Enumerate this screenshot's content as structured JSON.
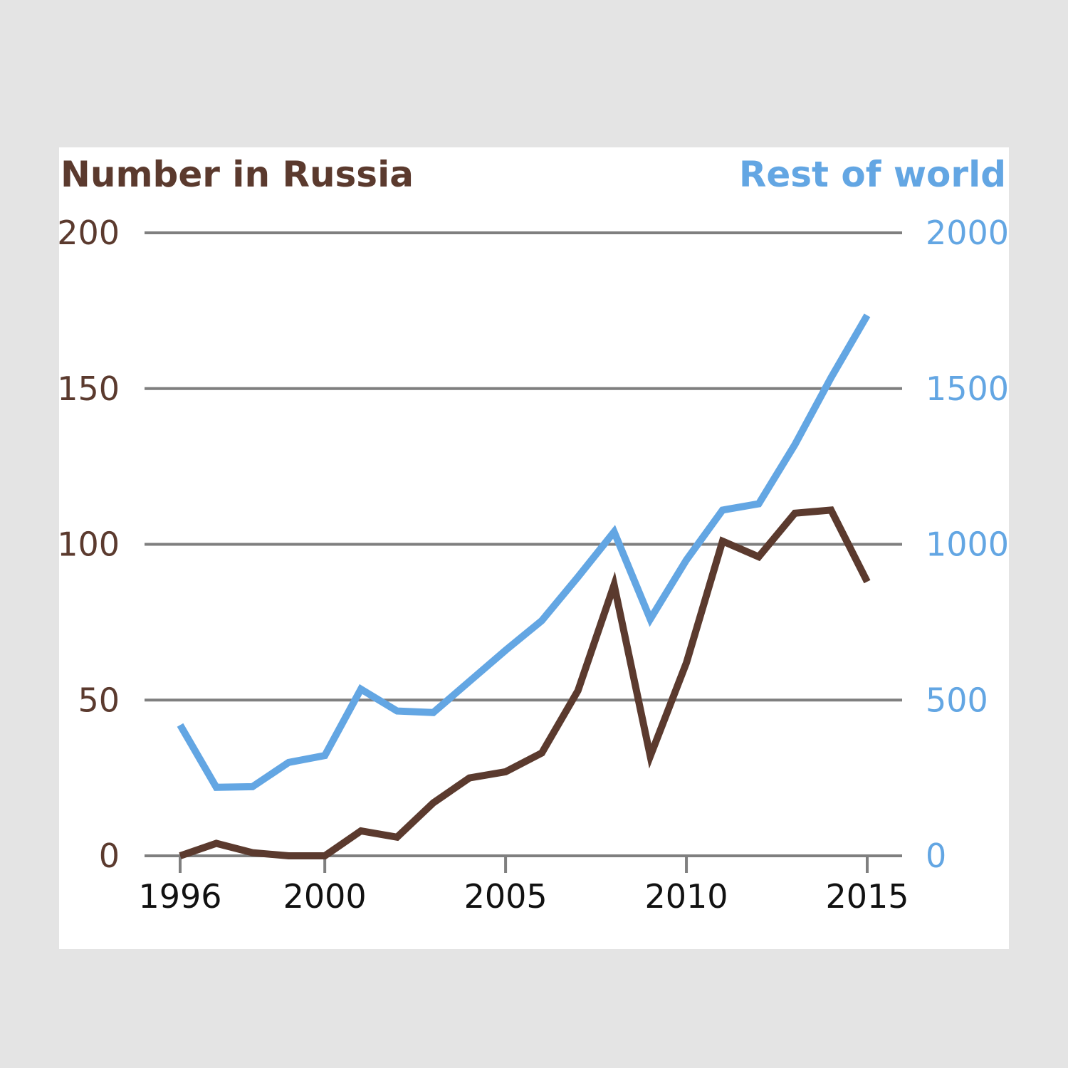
{
  "chart_data": {
    "type": "line",
    "title": "",
    "y_left_label": "Number in Russia",
    "y_right_label": "Rest of world",
    "y_left_ticks": [
      0,
      50,
      100,
      150,
      200
    ],
    "y_right_ticks": [
      0,
      500,
      1000,
      1500,
      2000
    ],
    "y_left_range": [
      0,
      200
    ],
    "y_right_range": [
      0,
      2000
    ],
    "x_range": [
      1996,
      2015
    ],
    "x_ticks": [
      1996,
      2000,
      2005,
      2010,
      2015
    ],
    "grid": "horizontal",
    "x": [
      1996,
      1997,
      1998,
      1999,
      2000,
      2001,
      2002,
      2003,
      2004,
      2005,
      2006,
      2007,
      2008,
      2009,
      2010,
      2011,
      2012,
      2013,
      2014,
      2015
    ],
    "series": [
      {
        "name": "Number in Russia",
        "axis": "left",
        "color": "#5b3a2e",
        "values": [
          0,
          4,
          1,
          0,
          0,
          8,
          6,
          17,
          25,
          27,
          33,
          53,
          87,
          32,
          62,
          101,
          96,
          110,
          111,
          88
        ]
      },
      {
        "name": "Rest of world",
        "axis": "right",
        "color": "#63a6e3",
        "values": [
          420,
          220,
          222,
          300,
          322,
          535,
          465,
          460,
          560,
          660,
          755,
          895,
          1040,
          760,
          950,
          1110,
          1130,
          1320,
          1535,
          1735
        ]
      }
    ]
  }
}
